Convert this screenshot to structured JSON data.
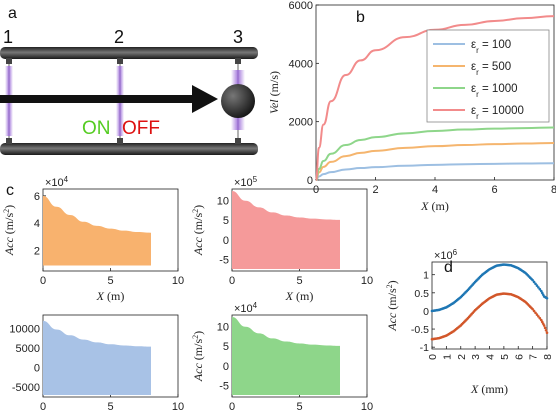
{
  "panels": {
    "a": {
      "letter": "a",
      "positions": [
        "1",
        "2",
        "3"
      ],
      "on_label": "ON",
      "off_label": "OFF",
      "colors": {
        "rail": "#3a3a3a",
        "on": "#55cc22",
        "off": "#dd1111",
        "glow": "#9a6ad8",
        "arrow": "#111111"
      }
    },
    "b": {
      "letter": "b"
    },
    "c": {
      "letter": "c"
    },
    "d": {
      "letter": "d"
    }
  },
  "chart_data": [
    {
      "id": "b",
      "type": "line",
      "xlabel": "X (m)",
      "ylabel": "Vel (m/s)",
      "xlim": [
        0,
        8
      ],
      "ylim": [
        0,
        6000
      ],
      "xticks": [
        "0",
        "2",
        "4",
        "6",
        "8"
      ],
      "yticks": [
        "0",
        "2000",
        "4000",
        "6000"
      ],
      "legend_position": "right",
      "series": [
        {
          "name": "εr = 100",
          "legend_prefix": "ε",
          "legend_sub": "r",
          "legend_suffix": " = 100",
          "color": "#9dbfe2",
          "x": [
            0,
            0.1,
            0.25,
            0.5,
            1,
            1.5,
            2,
            3,
            4,
            5,
            6,
            7,
            8
          ],
          "y": [
            0,
            120,
            200,
            270,
            360,
            410,
            440,
            490,
            520,
            540,
            555,
            565,
            575
          ]
        },
        {
          "name": "εr = 500",
          "legend_prefix": "ε",
          "legend_sub": "r",
          "legend_suffix": " = 500",
          "color": "#f5b56e",
          "x": [
            0,
            0.1,
            0.25,
            0.5,
            1,
            1.5,
            2,
            3,
            4,
            5,
            6,
            7,
            8
          ],
          "y": [
            0,
            260,
            450,
            620,
            820,
            930,
            1000,
            1100,
            1160,
            1200,
            1230,
            1250,
            1270
          ]
        },
        {
          "name": "εr = 1000",
          "legend_prefix": "ε",
          "legend_sub": "r",
          "legend_suffix": " = 1000",
          "color": "#8ed68a",
          "x": [
            0,
            0.1,
            0.25,
            0.5,
            1,
            1.5,
            2,
            3,
            4,
            5,
            6,
            7,
            8
          ],
          "y": [
            0,
            380,
            650,
            900,
            1200,
            1370,
            1470,
            1600,
            1680,
            1730,
            1760,
            1780,
            1800
          ]
        },
        {
          "name": "εr = 10000",
          "legend_prefix": "ε",
          "legend_sub": "r",
          "legend_suffix": " = 10000",
          "color": "#f28b8b",
          "x": [
            0,
            0.1,
            0.25,
            0.5,
            1,
            1.5,
            2,
            3,
            4,
            5,
            6,
            7,
            8
          ],
          "y": [
            0,
            1100,
            1900,
            2700,
            3600,
            4100,
            4450,
            4900,
            5150,
            5320,
            5450,
            5550,
            5620
          ]
        }
      ]
    },
    {
      "id": "c1",
      "type": "area",
      "xlabel": "X (m)",
      "ylabel": "Acc (m/s2)",
      "ylabel_main": "Acc (m/s",
      "ylabel_sup": "2",
      "ylabel_end": ")",
      "multiplier": "×10",
      "multiplier_exp": "4",
      "xlim": [
        0,
        10
      ],
      "ylim": [
        0.5,
        6.5
      ],
      "xticks": [
        "0",
        "5",
        "10"
      ],
      "yticks": [
        "2",
        "4",
        "6"
      ],
      "color": "#f8b26e",
      "x": [
        0,
        1,
        2,
        3,
        4,
        5,
        6,
        7,
        8
      ],
      "upper": [
        6.0,
        5.2,
        4.6,
        4.1,
        3.8,
        3.6,
        3.45,
        3.35,
        3.3
      ],
      "lower": [
        0.9,
        0.9,
        0.9,
        0.9,
        0.9,
        0.9,
        0.9,
        0.9,
        0.9
      ]
    },
    {
      "id": "c2",
      "type": "area",
      "xlabel": "X (m)",
      "ylabel": "Acc (m/s2)",
      "ylabel_main": "Acc (m/s",
      "ylabel_sup": "2",
      "ylabel_end": ")",
      "multiplier": "×10",
      "multiplier_exp": "5",
      "xlim": [
        0,
        10
      ],
      "ylim": [
        -8,
        13
      ],
      "xticks": [
        "0",
        "5",
        "10"
      ],
      "yticks": [
        "-5",
        "0",
        "5",
        "10"
      ],
      "color": "#f59a9a",
      "x": [
        0,
        1,
        2,
        3,
        4,
        5,
        6,
        7,
        8
      ],
      "upper": [
        12.5,
        10,
        8.3,
        7.0,
        6.2,
        5.7,
        5.4,
        5.2,
        5.1
      ],
      "lower": [
        -7.5,
        -7.5,
        -7.5,
        -7.5,
        -7.5,
        -7.5,
        -7.5,
        -7.5,
        -7.5
      ]
    },
    {
      "id": "c3",
      "type": "area",
      "xlabel": "X (m)",
      "ylabel": "",
      "xlim": [
        0,
        10
      ],
      "ylim": [
        -7500,
        13500
      ],
      "xticks": [
        "0",
        "5",
        "10"
      ],
      "yticks": [
        "-5000",
        "0",
        "5000",
        "10000"
      ],
      "color": "#a8c2e6",
      "x": [
        0,
        1,
        2,
        3,
        4,
        5,
        6,
        7,
        8
      ],
      "upper": [
        12000,
        9800,
        8300,
        7200,
        6500,
        6000,
        5700,
        5500,
        5400
      ],
      "lower": [
        -7000,
        -7000,
        -7000,
        -7000,
        -7000,
        -7000,
        -7000,
        -7000,
        -7000
      ]
    },
    {
      "id": "c4",
      "type": "area",
      "xlabel": "X (m)",
      "ylabel": "Acc (m/s2)",
      "ylabel_main": "Acc (m/s",
      "ylabel_sup": "2",
      "ylabel_end": ")",
      "multiplier": "×10",
      "multiplier_exp": "4",
      "xlim": [
        0,
        10
      ],
      "ylim": [
        -8,
        13
      ],
      "xticks": [
        "0",
        "5",
        "10"
      ],
      "yticks": [
        "-5",
        "0",
        "5",
        "10"
      ],
      "color": "#8ed68a",
      "x": [
        0,
        1,
        2,
        3,
        4,
        5,
        6,
        7,
        8
      ],
      "upper": [
        12.5,
        10,
        8.3,
        7.0,
        6.2,
        5.7,
        5.4,
        5.2,
        5.1
      ],
      "lower": [
        -7.5,
        -7.5,
        -7.5,
        -7.5,
        -7.5,
        -7.5,
        -7.5,
        -7.5,
        -7.5
      ]
    },
    {
      "id": "d",
      "type": "scatter",
      "xlabel": "X (mm)",
      "ylabel": "Acc (m/s2)",
      "ylabel_main": "Acc (m/s",
      "ylabel_sup": "2",
      "ylabel_end": ")",
      "multiplier": "×10",
      "multiplier_exp": "6",
      "xlim": [
        0,
        8
      ],
      "ylim": [
        -1.05,
        1.35
      ],
      "xticks": [
        "0",
        "1",
        "2",
        "3",
        "4",
        "5",
        "6",
        "7",
        "8"
      ],
      "yticks": [
        "-1",
        "-0.5",
        "0",
        "0.5",
        "1"
      ],
      "series": [
        {
          "name": "",
          "color": "#1f77b4",
          "x": [
            0,
            0.5,
            1,
            1.5,
            2,
            2.5,
            3,
            3.5,
            4,
            4.5,
            5,
            5.5,
            6,
            6.5,
            7,
            7.3,
            7.6,
            7.8,
            8
          ],
          "y": [
            0,
            0.03,
            0.1,
            0.22,
            0.38,
            0.58,
            0.8,
            1.0,
            1.15,
            1.25,
            1.28,
            1.26,
            1.18,
            1.05,
            0.85,
            0.7,
            0.55,
            0.4,
            0.35
          ]
        },
        {
          "name": "",
          "color": "#d2572a",
          "x": [
            0,
            0.5,
            1,
            1.5,
            2,
            2.5,
            3,
            3.5,
            4,
            4.5,
            5,
            5.5,
            6,
            6.5,
            7,
            7.3,
            7.6,
            7.8,
            8
          ],
          "y": [
            -0.78,
            -0.75,
            -0.68,
            -0.56,
            -0.4,
            -0.2,
            0.02,
            0.2,
            0.35,
            0.45,
            0.48,
            0.46,
            0.38,
            0.25,
            0.05,
            -0.1,
            -0.25,
            -0.4,
            -0.6
          ]
        }
      ]
    }
  ]
}
